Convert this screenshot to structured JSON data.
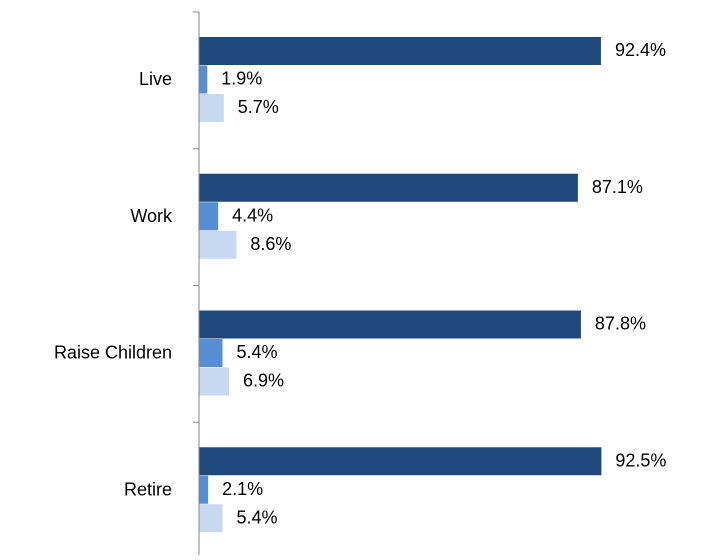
{
  "chart_data": {
    "type": "bar",
    "orientation": "horizontal",
    "categories": [
      "Live",
      "Work",
      "Raise Children",
      "Retire"
    ],
    "xlim": [
      0,
      100
    ],
    "series": [
      {
        "color": "#1f497d",
        "values": [
          92.4,
          87.1,
          87.8,
          92.5
        ],
        "value_labels": [
          "92.4%",
          "87.1%",
          "87.8%",
          "92.5%"
        ]
      },
      {
        "color": "#558ed5",
        "values": [
          1.9,
          4.4,
          5.4,
          2.1
        ],
        "value_labels": [
          "1.9%",
          "4.4%",
          "5.4%",
          "2.1%"
        ]
      },
      {
        "color": "#c6d9f1",
        "values": [
          5.7,
          8.6,
          6.9,
          5.4
        ],
        "value_labels": [
          "5.7%",
          "8.6%",
          "6.9%",
          "5.4%"
        ]
      }
    ]
  }
}
